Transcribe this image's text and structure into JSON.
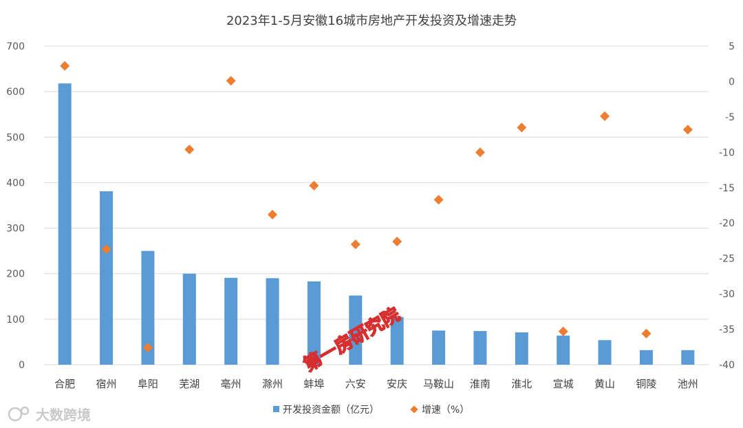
{
  "chart_data": {
    "type": "bar",
    "title": "2023年1-5月安徽16城市房地产开发投资及增速走势",
    "categories": [
      "合肥",
      "宿州",
      "阜阳",
      "芜湖",
      "亳州",
      "滁州",
      "蚌埠",
      "六安",
      "安庆",
      "马鞍山",
      "淮南",
      "淮北",
      "宣城",
      "黄山",
      "铜陵",
      "池州"
    ],
    "series": [
      {
        "name": "开发投资金额（亿元）",
        "type": "bar",
        "axis": "left",
        "color": "#5b9bd5",
        "values": [
          618,
          381,
          250,
          200,
          191,
          190,
          183,
          152,
          105,
          75,
          74,
          71,
          64,
          54,
          32,
          32
        ]
      },
      {
        "name": "增速（%）",
        "type": "scatter",
        "axis": "right",
        "color": "#ed7d31",
        "values": [
          2.2,
          -23.7,
          -37.6,
          -9.6,
          0.1,
          -18.8,
          -14.7,
          -23.0,
          -22.6,
          -16.7,
          -10.0,
          -6.5,
          -35.3,
          -4.9,
          -35.6,
          -6.8
        ]
      }
    ],
    "y_left": {
      "min": 0,
      "max": 700,
      "ticks": [
        0,
        100,
        200,
        300,
        400,
        500,
        600,
        700
      ]
    },
    "y_right": {
      "min": -40,
      "max": 5,
      "ticks": [
        5,
        0,
        -5,
        -10,
        -15,
        -20,
        -25,
        -30,
        -35,
        -40
      ]
    },
    "grid": true,
    "legend_position": "bottom"
  },
  "watermark": {
    "text": "第一房研究院"
  },
  "logo": {
    "text": "大数跨境"
  }
}
